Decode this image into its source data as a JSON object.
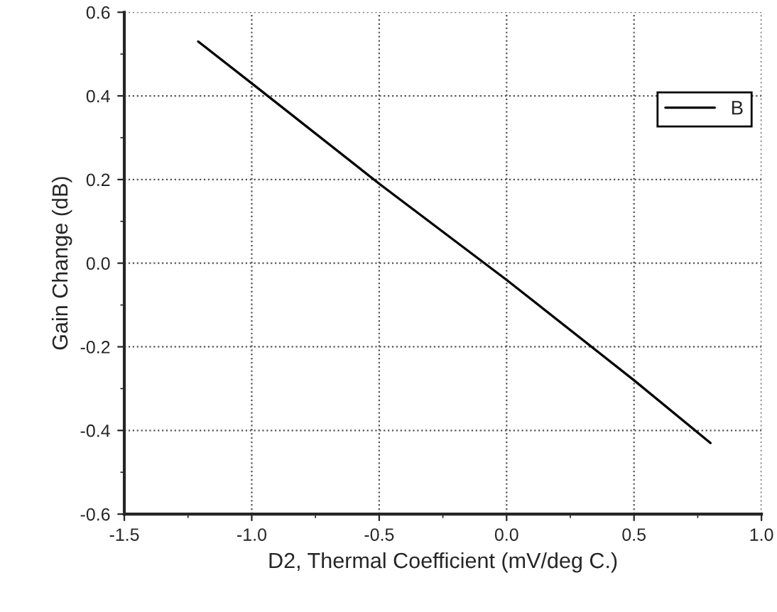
{
  "chart_data": {
    "type": "line",
    "xlabel": "D2, Thermal Coefficient (mV/deg C.)",
    "ylabel": "Gain Change (dB)",
    "x": [
      -1.21,
      -1.0,
      -0.5,
      0.0,
      0.5,
      0.8
    ],
    "series": [
      {
        "name": "B",
        "color": "#000000",
        "values": [
          0.53,
          0.43,
          0.19,
          -0.04,
          -0.28,
          -0.43
        ]
      }
    ],
    "xlim": [
      -1.5,
      1.0
    ],
    "xticks": [
      {
        "value": -1.5,
        "label": "-1.5"
      },
      {
        "value": -1.0,
        "label": "-1.0"
      },
      {
        "value": -0.5,
        "label": "-0.5"
      },
      {
        "value": 0.0,
        "label": "0.0"
      },
      {
        "value": 0.5,
        "label": "0.5"
      },
      {
        "value": 1.0,
        "label": "1.0"
      }
    ],
    "ylim": [
      -0.6,
      0.6
    ],
    "yticks": [
      {
        "value": -0.6,
        "label": "-0.6"
      },
      {
        "value": -0.4,
        "label": "-0.4"
      },
      {
        "value": -0.2,
        "label": "-0.2"
      },
      {
        "value": 0.0,
        "label": "0.0"
      },
      {
        "value": 0.2,
        "label": "0.2"
      },
      {
        "value": 0.4,
        "label": "0.4"
      },
      {
        "value": 0.6,
        "label": "0.6"
      }
    ],
    "grid": true,
    "legend": "top right",
    "marker": "none",
    "line_style": "solid"
  }
}
